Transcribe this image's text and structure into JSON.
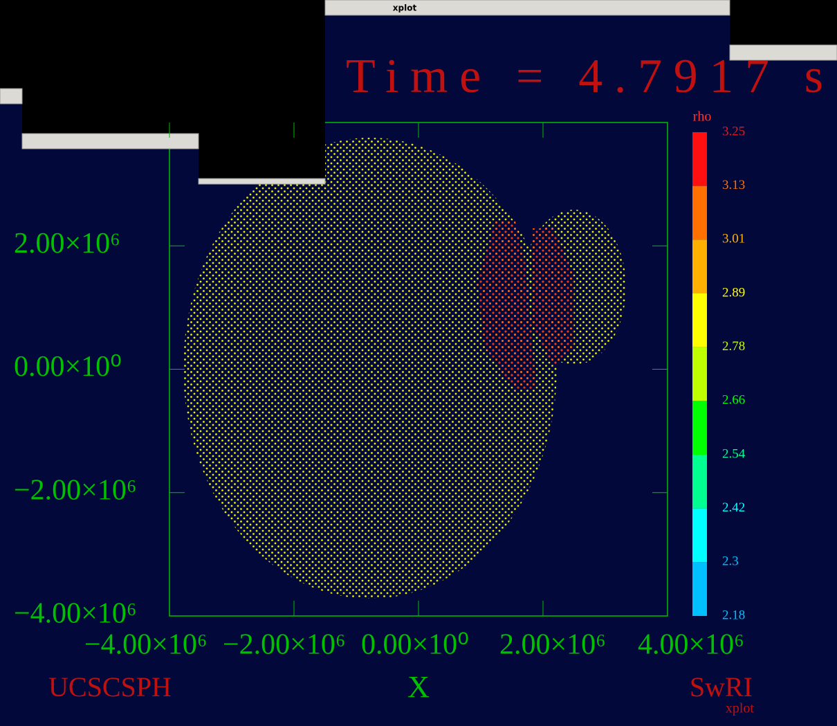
{
  "window": {
    "title": "xplot"
  },
  "chart_data": {
    "type": "scatter",
    "title": "Time = 4.7917 s",
    "xlabel": "X",
    "xlim": [
      -4000000,
      4000000
    ],
    "ylim": [
      -4000000,
      4000000
    ],
    "xticks": [
      {
        "value": -4000000,
        "label": "−4.00×10⁶"
      },
      {
        "value": -2000000,
        "label": "−2.00×10⁶"
      },
      {
        "value": 0,
        "label": "0.00×10⁰"
      },
      {
        "value": 2000000,
        "label": "2.00×10⁶"
      },
      {
        "value": 4000000,
        "label": "4.00×10⁶"
      }
    ],
    "yticks": [
      {
        "value": 2000000,
        "label": "2.00×10⁶"
      },
      {
        "value": 0,
        "label": "0.00×10⁰"
      },
      {
        "value": -2000000,
        "label": "−2.00×10⁶"
      },
      {
        "value": -4000000,
        "label": "−4.00×10⁶"
      }
    ],
    "colorbar": {
      "label": "rho",
      "ticks": [
        "3.25",
        "3.13",
        "3.01",
        "2.89",
        "2.78",
        "2.66",
        "2.54",
        "2.42",
        "2.3",
        "2.18"
      ],
      "colors": [
        "#ff1010",
        "#ff7000",
        "#ffb000",
        "#ffff00",
        "#c0ff00",
        "#00ff00",
        "#00ff90",
        "#00ffff",
        "#00c0ff"
      ]
    },
    "footer_left": "UCSCSPH",
    "footer_right": "SwRI",
    "footer_small": "xplot"
  }
}
